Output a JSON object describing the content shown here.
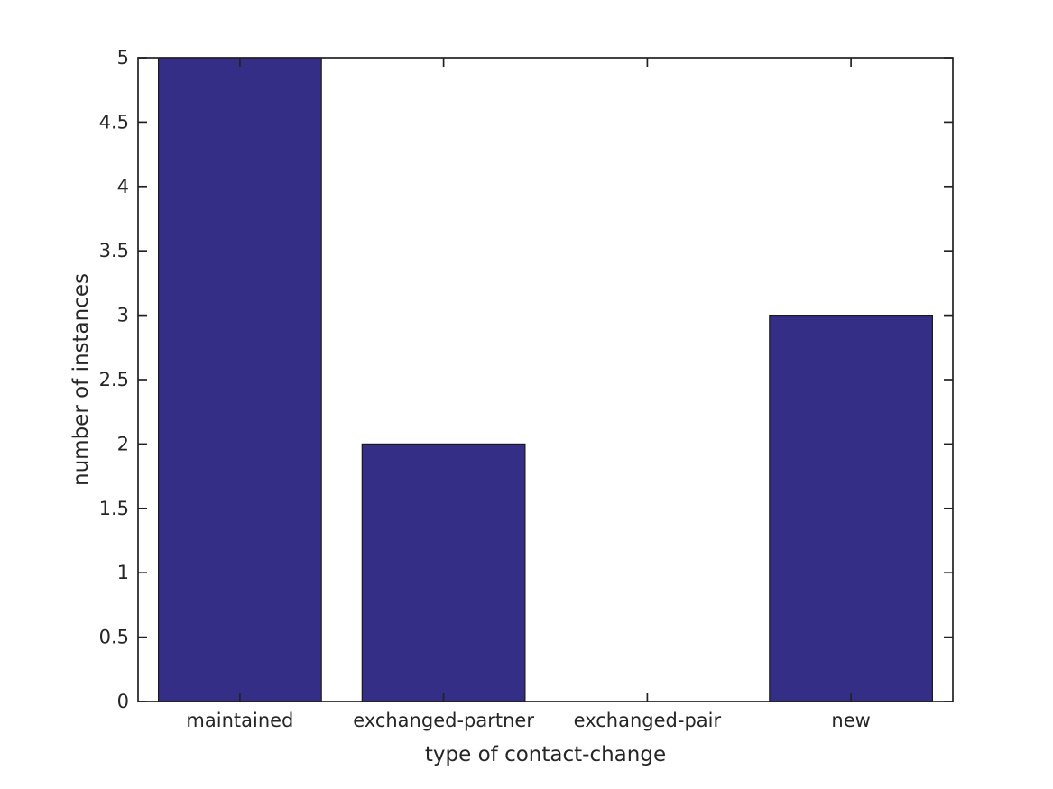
{
  "chart_data": {
    "type": "bar",
    "title": "",
    "xlabel": "type of contact-change",
    "ylabel": "number of instances",
    "categories": [
      "maintained",
      "exchanged-partner",
      "exchanged-pair",
      "new"
    ],
    "values": [
      5,
      2,
      0,
      3
    ],
    "ylim": [
      0,
      5
    ],
    "ytick_step": 0.5,
    "yticks": [
      0,
      0.5,
      1,
      1.5,
      2,
      2.5,
      3,
      3.5,
      4,
      4.5,
      5
    ],
    "bar_width_fraction": 0.8,
    "grid": false,
    "legend": "none",
    "tick_style": "inward-all-four-sides",
    "colors": {
      "bar_fill": "#352e87",
      "bar_edge": "#1a1a1a",
      "axis": "#222222",
      "text": "#262626",
      "background": "#ffffff"
    }
  }
}
